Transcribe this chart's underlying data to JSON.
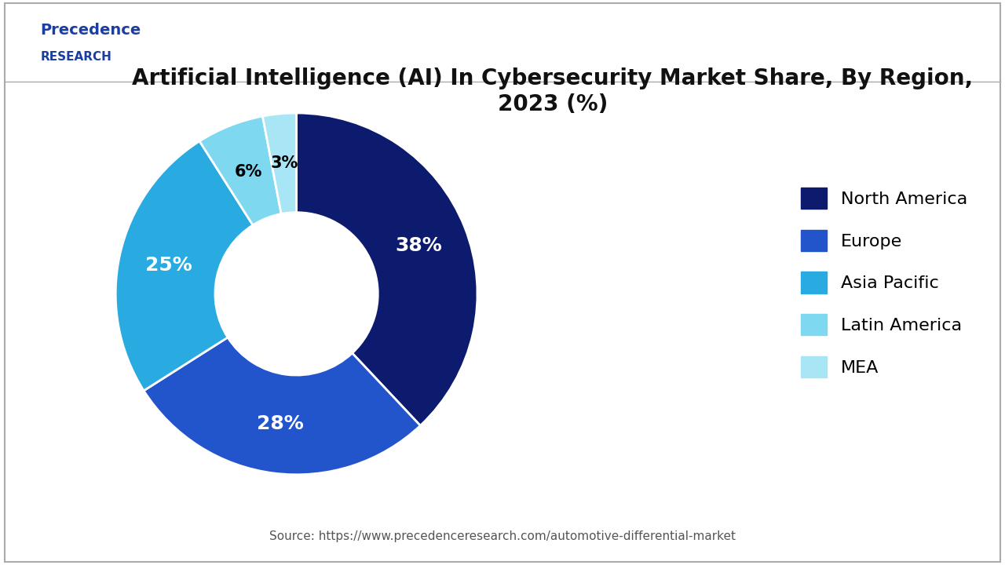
{
  "title": "Artificial Intelligence (AI) In Cybersecurity Market Share, By Region,\n2023 (%)",
  "slices": [
    38,
    28,
    25,
    6,
    3
  ],
  "labels": [
    "North America",
    "Europe",
    "Asia Pacific",
    "Latin America",
    "MEA"
  ],
  "colors": [
    "#0d1b6e",
    "#2255cc",
    "#29abe2",
    "#7dd8f0",
    "#a8e6f5"
  ],
  "pct_labels": [
    "38%",
    "28%",
    "25%",
    "6%",
    "3%"
  ],
  "pct_colors": [
    "white",
    "white",
    "white",
    "black",
    "black"
  ],
  "source_text": "Source: https://www.precedenceresearch.com/automotive-differential-market",
  "logo_text_precedence": "Precedence",
  "logo_text_research": "RESEARCH",
  "background_color": "#ffffff",
  "border_color": "#cccccc",
  "title_fontsize": 20,
  "legend_fontsize": 16,
  "pct_fontsize": 18,
  "source_fontsize": 11
}
